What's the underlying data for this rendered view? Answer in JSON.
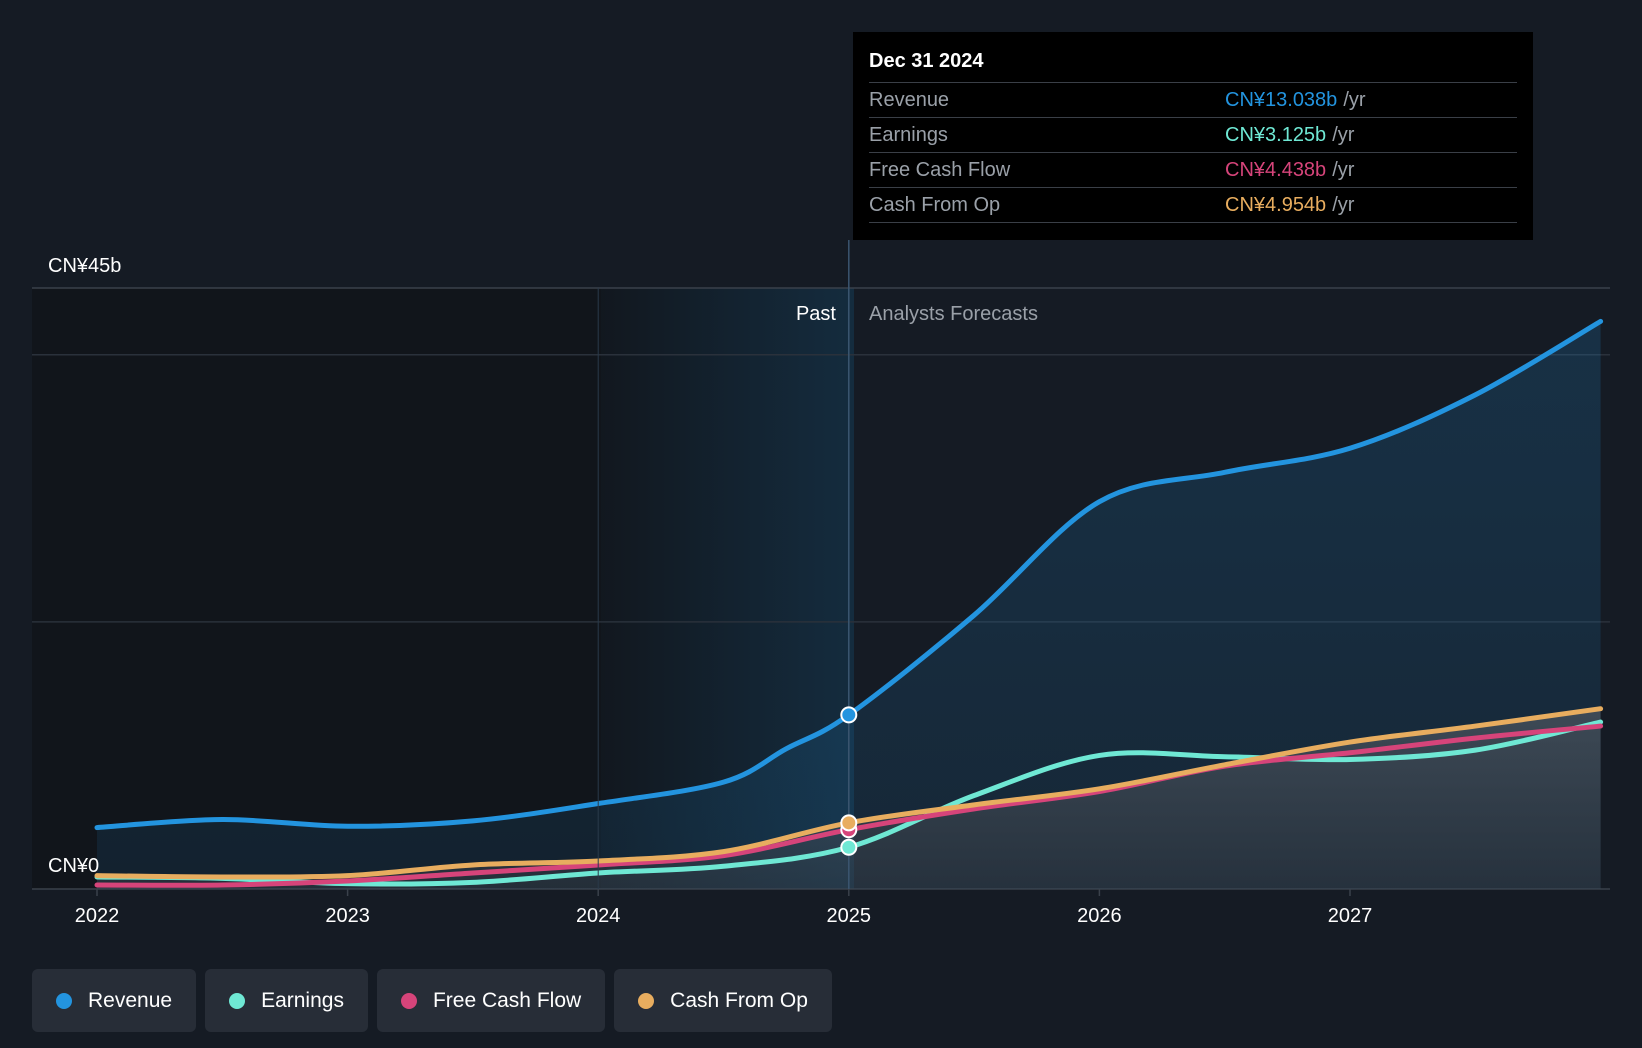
{
  "chart_data": {
    "type": "line",
    "title": "",
    "y_top_label": "CN¥45b",
    "y_bottom_label": "CN¥0",
    "ylim": [
      0,
      45
    ],
    "xlim": [
      2022,
      2028
    ],
    "x_ticks": [
      "2022",
      "2023",
      "2024",
      "2025",
      "2026",
      "2027"
    ],
    "x_tick_values": [
      2022,
      2023,
      2024,
      2025,
      2026,
      2027
    ],
    "past_label": "Past",
    "forecast_label": "Analysts Forecasts",
    "divider_x": 2025,
    "series": [
      {
        "name": "Revenue",
        "color": "#2394df",
        "points": [
          [
            2022,
            4.6
          ],
          [
            2022.5,
            5.2
          ],
          [
            2023,
            4.7
          ],
          [
            2023.5,
            5.1
          ],
          [
            2024,
            6.4
          ],
          [
            2024.5,
            8.0
          ],
          [
            2024.75,
            10.5
          ],
          [
            2025,
            13.038
          ],
          [
            2025.5,
            20.5
          ],
          [
            2026,
            29.0
          ],
          [
            2026.5,
            31.2
          ],
          [
            2027,
            33.0
          ],
          [
            2027.5,
            37.0
          ],
          [
            2028,
            42.5
          ]
        ]
      },
      {
        "name": "Earnings",
        "color": "#6fe8d4",
        "points": [
          [
            2022,
            0.9
          ],
          [
            2022.5,
            0.8
          ],
          [
            2023,
            0.4
          ],
          [
            2023.5,
            0.5
          ],
          [
            2024,
            1.2
          ],
          [
            2024.5,
            1.7
          ],
          [
            2025,
            3.125
          ],
          [
            2025.5,
            7.0
          ],
          [
            2026,
            10.0
          ],
          [
            2026.5,
            9.9
          ],
          [
            2027,
            9.7
          ],
          [
            2027.5,
            10.4
          ],
          [
            2028,
            12.5
          ]
        ]
      },
      {
        "name": "Free Cash Flow",
        "color": "#d6447a",
        "points": [
          [
            2022,
            0.3
          ],
          [
            2022.5,
            0.3
          ],
          [
            2023,
            0.6
          ],
          [
            2023.5,
            1.2
          ],
          [
            2024,
            1.8
          ],
          [
            2024.5,
            2.5
          ],
          [
            2025,
            4.438
          ],
          [
            2025.5,
            6.0
          ],
          [
            2026,
            7.3
          ],
          [
            2026.5,
            9.2
          ],
          [
            2027,
            10.2
          ],
          [
            2027.5,
            11.3
          ],
          [
            2028,
            12.2
          ]
        ]
      },
      {
        "name": "Cash From Op",
        "color": "#e8ad5f",
        "points": [
          [
            2022,
            1.0
          ],
          [
            2022.5,
            0.9
          ],
          [
            2023,
            1.0
          ],
          [
            2023.5,
            1.8
          ],
          [
            2024,
            2.1
          ],
          [
            2024.5,
            2.8
          ],
          [
            2025,
            4.954
          ],
          [
            2025.5,
            6.3
          ],
          [
            2026,
            7.5
          ],
          [
            2026.5,
            9.3
          ],
          [
            2027,
            11.0
          ],
          [
            2027.5,
            12.2
          ],
          [
            2028,
            13.5
          ]
        ]
      }
    ],
    "highlight_x": 2025
  },
  "tooltip": {
    "date": "Dec 31 2024",
    "rows": [
      {
        "label": "Revenue",
        "value": "CN¥13.038b",
        "unit": "/yr",
        "color": "#2394df"
      },
      {
        "label": "Earnings",
        "value": "CN¥3.125b",
        "unit": "/yr",
        "color": "#6fe8d4"
      },
      {
        "label": "Free Cash Flow",
        "value": "CN¥4.438b",
        "unit": "/yr",
        "color": "#d6447a"
      },
      {
        "label": "Cash From Op",
        "value": "CN¥4.954b",
        "unit": "/yr",
        "color": "#e8ad5f"
      }
    ]
  },
  "legend": [
    {
      "label": "Revenue",
      "color": "#2394df"
    },
    {
      "label": "Earnings",
      "color": "#6fe8d4"
    },
    {
      "label": "Free Cash Flow",
      "color": "#d6447a"
    },
    {
      "label": "Cash From Op",
      "color": "#e8ad5f"
    }
  ]
}
